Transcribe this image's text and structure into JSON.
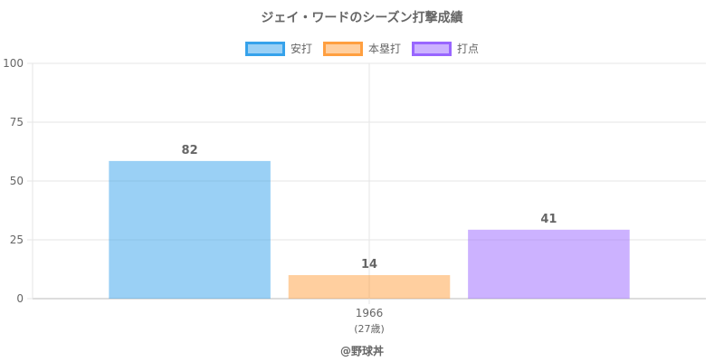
{
  "chart_data": {
    "type": "bar",
    "title": "ジェイ・ワードのシーズン打撃成績",
    "categories": [
      "1966"
    ],
    "category_sublabels": [
      "(27歳)"
    ],
    "series": [
      {
        "name": "安打",
        "values": [
          82
        ],
        "display_values": [
          58.5
        ],
        "color": "#36a2eb"
      },
      {
        "name": "本塁打",
        "values": [
          14
        ],
        "display_values": [
          10
        ],
        "color": "#ff9f40"
      },
      {
        "name": "打点",
        "values": [
          41
        ],
        "display_values": [
          29.3
        ],
        "color": "#9966ff"
      }
    ],
    "ylim": [
      0,
      100
    ],
    "yticks": [
      0,
      25,
      50,
      75,
      100
    ],
    "grid": true,
    "legend_position": "top"
  },
  "footer": "@野球丼"
}
